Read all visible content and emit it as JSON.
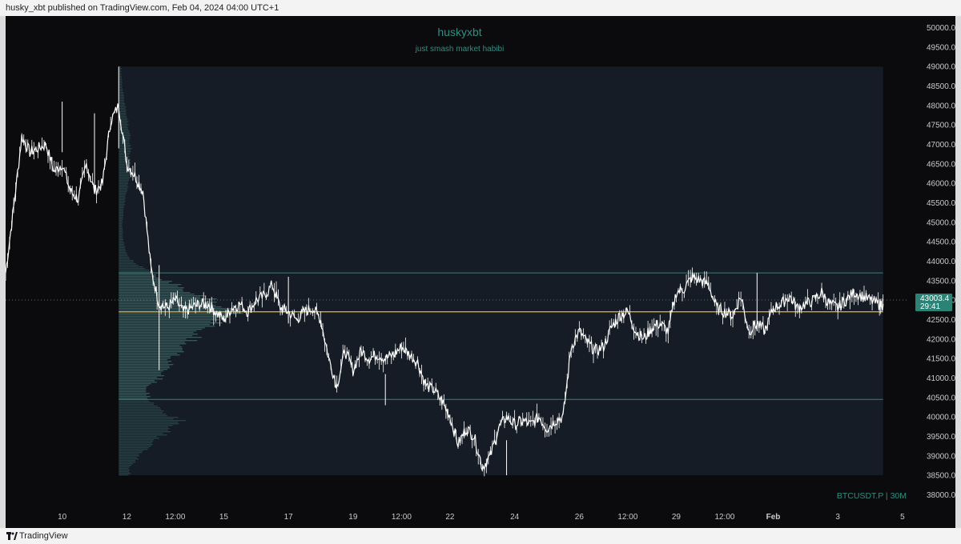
{
  "header": {
    "published_text": "husky_xbt published on TradingView.com, Feb 04, 2024 04:00 UTC+1"
  },
  "footer": {
    "brand": "TradingView",
    "logo_icon": "tradingview-logo-icon"
  },
  "colors": {
    "background": "#0b0b0d",
    "range_box": "#151c25",
    "candles": "#ffffff",
    "profile": "#2a8a7c",
    "value_area_lines": "#2e8578",
    "poc_line": "#e8b928",
    "axis_text": "#c9c9c9",
    "title_text": "#2f8f80",
    "price_tag": "#2b8376"
  },
  "chart_data": {
    "type": "line",
    "title": "huskyxbt",
    "subtitle": "just smash market habibi",
    "symbol_label": "BTCUSDT.P | 30M",
    "ylim": [
      37700,
      50300
    ],
    "y_ticks": [
      "50000.0",
      "49500.0",
      "49000.0",
      "48500.0",
      "48000.0",
      "47500.0",
      "47000.0",
      "46500.0",
      "46000.0",
      "45500.0",
      "45000.0",
      "44500.0",
      "44000.0",
      "43500.0",
      "43000.0",
      "42500.0",
      "42000.0",
      "41500.0",
      "41000.0",
      "40500.0",
      "40000.0",
      "39500.0",
      "39000.0",
      "38500.0",
      "38000.0"
    ],
    "x_ticks": [
      "10",
      "12",
      "12:00",
      "15",
      "17",
      "19",
      "12:00",
      "22",
      "24",
      "26",
      "12:00",
      "29",
      "12:00",
      "Feb",
      "3",
      "5"
    ],
    "x_tick_days": [
      10,
      12,
      13.5,
      15,
      17,
      19,
      20.5,
      22,
      24,
      26,
      27.5,
      29,
      30.5,
      32,
      34,
      36
    ],
    "xlim": [
      8.25,
      36.2
    ],
    "last_price": "43003.4",
    "countdown": "29:41",
    "volume_profile": {
      "day_start": 11.75,
      "day_end": 35.4,
      "price_low": 38500,
      "price_high": 49000,
      "poc": 42700,
      "value_area_high": 43700,
      "value_area_low": 40450,
      "bins": [
        {
          "price": 48900,
          "volume": 2
        },
        {
          "price": 48500,
          "volume": 3
        },
        {
          "price": 48100,
          "volume": 5
        },
        {
          "price": 47700,
          "volume": 7
        },
        {
          "price": 47300,
          "volume": 9
        },
        {
          "price": 46900,
          "volume": 10
        },
        {
          "price": 46500,
          "volume": 9
        },
        {
          "price": 46100,
          "volume": 9
        },
        {
          "price": 45700,
          "volume": 6
        },
        {
          "price": 45300,
          "volume": 4
        },
        {
          "price": 44900,
          "volume": 3
        },
        {
          "price": 44500,
          "volume": 4
        },
        {
          "price": 44100,
          "volume": 8
        },
        {
          "price": 43700,
          "volume": 28
        },
        {
          "price": 43300,
          "volume": 55
        },
        {
          "price": 42900,
          "volume": 85
        },
        {
          "price": 42700,
          "volume": 100
        },
        {
          "price": 42300,
          "volume": 72
        },
        {
          "price": 41900,
          "volume": 58
        },
        {
          "price": 41500,
          "volume": 45
        },
        {
          "price": 41100,
          "volume": 38
        },
        {
          "price": 40700,
          "volume": 22
        },
        {
          "price": 40300,
          "volume": 30
        },
        {
          "price": 39900,
          "volume": 52
        },
        {
          "price": 39500,
          "volume": 35
        },
        {
          "price": 39100,
          "volume": 20
        },
        {
          "price": 38700,
          "volume": 9
        }
      ]
    },
    "series": [
      {
        "x": [
          8.25,
          8.5,
          8.75,
          9.0,
          9.25,
          9.5,
          9.75,
          10.0,
          10.25,
          10.5,
          10.75,
          11.0,
          11.25,
          11.5,
          11.75,
          12.0,
          12.25,
          12.5,
          12.75,
          13.0,
          13.25,
          13.5,
          13.75,
          14.0,
          14.25,
          14.5,
          14.75,
          15.0,
          15.25,
          15.5,
          15.75,
          16.0,
          16.25,
          16.5,
          16.75,
          17.0,
          17.25,
          17.5,
          17.75,
          18.0,
          18.25,
          18.5,
          18.75,
          19.0,
          19.25,
          19.5,
          19.75,
          20.0,
          20.25,
          20.5,
          20.75,
          21.0,
          21.25,
          21.5,
          21.75,
          22.0,
          22.25,
          22.5,
          22.75,
          23.0,
          23.25,
          23.5,
          23.75,
          24.0,
          24.25,
          24.5,
          24.75,
          25.0,
          25.25,
          25.5,
          25.75,
          26.0,
          26.25,
          26.5,
          26.75,
          27.0,
          27.25,
          27.5,
          27.75,
          28.0,
          28.25,
          28.5,
          28.75,
          29.0,
          29.25,
          29.5,
          29.75,
          30.0,
          30.25,
          30.5,
          30.75,
          31.0,
          31.25,
          31.5,
          31.75,
          32.0,
          32.25,
          32.5,
          32.75,
          33.0,
          33.25,
          33.5,
          33.75,
          34.0,
          34.25,
          34.5,
          34.75,
          35.0,
          35.25,
          35.4
        ],
        "y": [
          43700,
          45400,
          47200,
          46800,
          46900,
          47000,
          46300,
          46500,
          45800,
          45600,
          46500,
          45800,
          46000,
          47600,
          48000,
          46500,
          46200,
          45800,
          43800,
          42900,
          42800,
          43000,
          42700,
          42800,
          42900,
          42900,
          42700,
          42500,
          42800,
          42900,
          42700,
          43000,
          43100,
          43400,
          42800,
          42700,
          42500,
          42700,
          42800,
          42500,
          41500,
          40800,
          41700,
          41200,
          41700,
          41500,
          41600,
          41500,
          41600,
          41800,
          41600,
          41400,
          40800,
          40700,
          40400,
          40000,
          39300,
          39700,
          39500,
          38700,
          39000,
          39700,
          40000,
          39800,
          39900,
          39800,
          40000,
          39700,
          39900,
          40000,
          41800,
          42200,
          41900,
          41700,
          41800,
          42300,
          42600,
          42700,
          42200,
          42000,
          42300,
          42400,
          42200,
          43200,
          43300,
          43600,
          43500,
          43400,
          42800,
          42700,
          42600,
          43100,
          42200,
          42400,
          42200,
          42800,
          42900,
          43100,
          42800,
          42900,
          43000,
          43200,
          42900,
          42800,
          43000,
          43200,
          43100,
          43000,
          42900,
          42900
        ]
      }
    ]
  }
}
